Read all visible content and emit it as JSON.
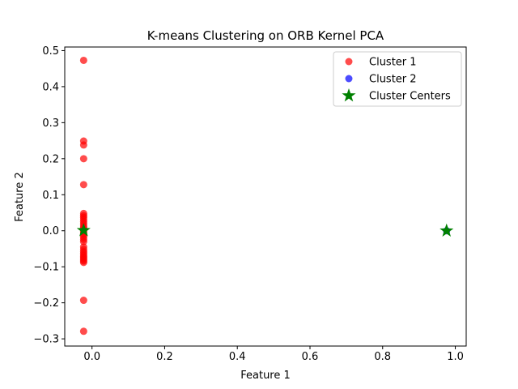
{
  "chart_data": {
    "type": "scatter",
    "title": "K-means Clustering on ORB Kernel PCA",
    "xlabel": "Feature 1",
    "ylabel": "Feature 2",
    "xlim": [
      -0.075,
      1.03
    ],
    "ylim": [
      -0.32,
      0.51
    ],
    "xticks": [
      0.0,
      0.2,
      0.4,
      0.6,
      0.8,
      1.0
    ],
    "xtick_labels": [
      "0.0",
      "0.2",
      "0.4",
      "0.6",
      "0.8",
      "1.0"
    ],
    "yticks": [
      -0.3,
      -0.2,
      -0.1,
      0.0,
      0.1,
      0.2,
      0.3,
      0.4,
      0.5
    ],
    "ytick_labels": [
      "−0.3",
      "−0.2",
      "−0.1",
      "0.0",
      "0.1",
      "0.2",
      "0.3",
      "0.4",
      "0.5"
    ],
    "grid": false,
    "legend_position": "top-right",
    "series": [
      {
        "name": "Cluster 1",
        "color": "#ff0000",
        "marker": "circle",
        "x": [
          -0.023,
          -0.023,
          -0.023,
          -0.023,
          -0.023,
          -0.023,
          -0.023,
          -0.023,
          -0.023,
          -0.023,
          -0.023,
          -0.023,
          -0.023,
          -0.023,
          -0.023,
          -0.023,
          -0.023,
          -0.023,
          -0.023,
          -0.023,
          -0.023,
          -0.023,
          -0.023,
          -0.023,
          -0.023,
          -0.023,
          -0.023,
          -0.023,
          -0.023,
          -0.023,
          -0.023,
          -0.023
        ],
        "y": [
          0.473,
          0.249,
          0.238,
          0.2,
          0.128,
          0.048,
          0.042,
          0.037,
          0.031,
          0.025,
          0.019,
          0.013,
          0.008,
          0.003,
          -0.002,
          -0.007,
          -0.012,
          -0.018,
          -0.024,
          -0.03,
          -0.045,
          -0.052,
          -0.058,
          -0.063,
          -0.068,
          -0.072,
          -0.076,
          -0.08,
          -0.084,
          -0.088,
          -0.193,
          -0.279
        ]
      },
      {
        "name": "Cluster 2",
        "color": "#0000ff",
        "marker": "circle",
        "x": [
          0.976
        ],
        "y": [
          0.0
        ]
      },
      {
        "name": "Cluster Centers",
        "color": "#008000",
        "marker": "star",
        "x": [
          -0.023,
          0.976
        ],
        "y": [
          0.001,
          0.0
        ]
      }
    ]
  }
}
